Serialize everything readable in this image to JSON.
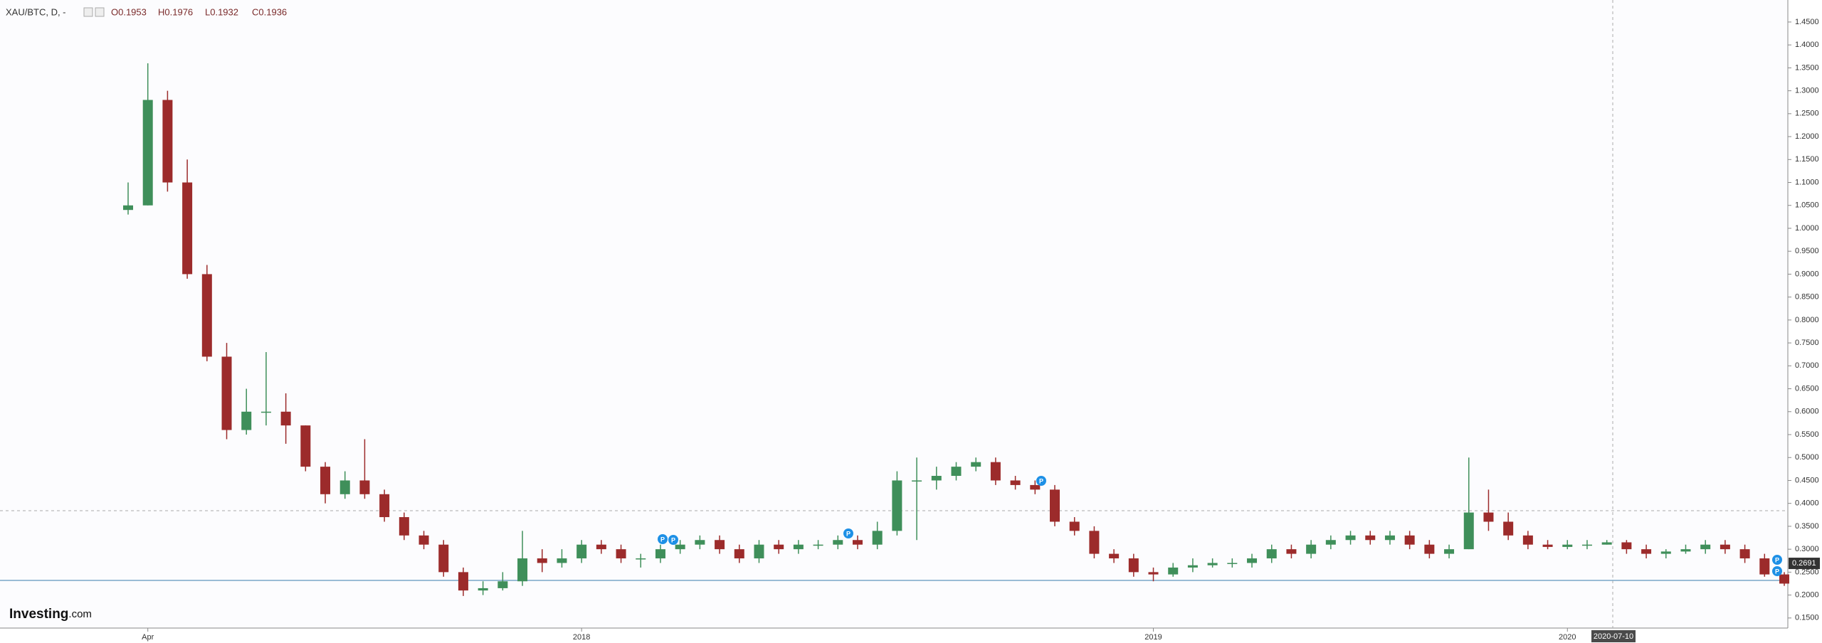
{
  "header": {
    "symbol": "XAU/BTC, D, -",
    "ohlc": [
      "O0.1953",
      "H0.1976",
      "L0.1932",
      "C0.1936"
    ],
    "crosshair_date": "2020-07-10",
    "event_marker_label": "P",
    "logo": "Investing",
    "logo_suffix": ".com"
  },
  "chart_data": {
    "type": "candlestick",
    "categories": [
      null,
      "Apr",
      null,
      null,
      null,
      null,
      null,
      null,
      null,
      null,
      null,
      null,
      null,
      null,
      null,
      null,
      null,
      null,
      null,
      null,
      null,
      null,
      null,
      "2018",
      null,
      null,
      null,
      null,
      null,
      null,
      null,
      null,
      null,
      null,
      null,
      null,
      null,
      null,
      null,
      null,
      null,
      null,
      null,
      null,
      null,
      null,
      null,
      null,
      null,
      null,
      null,
      null,
      "2019",
      null,
      null,
      null,
      null,
      null,
      null,
      null,
      null,
      null,
      null,
      null,
      null,
      null,
      null,
      null,
      null,
      null,
      null,
      null,
      null,
      "2020",
      null,
      null,
      null,
      null,
      null,
      null,
      null,
      null,
      null,
      null,
      null
    ],
    "open": [
      1.04,
      1.05,
      1.28,
      1.1,
      0.9,
      0.72,
      0.56,
      0.6,
      0.6,
      0.57,
      0.48,
      0.42,
      0.45,
      0.42,
      0.37,
      0.33,
      0.31,
      0.25,
      0.21,
      0.215,
      0.23,
      0.28,
      0.27,
      0.28,
      0.31,
      0.3,
      0.28,
      0.28,
      0.3,
      0.31,
      0.32,
      0.3,
      0.28,
      0.31,
      0.3,
      0.31,
      0.31,
      0.32,
      0.31,
      0.34,
      0.45,
      0.45,
      0.46,
      0.48,
      0.49,
      0.45,
      0.44,
      0.43,
      0.36,
      0.34,
      0.29,
      0.28,
      0.25,
      0.245,
      0.26,
      0.265,
      0.27,
      0.27,
      0.28,
      0.3,
      0.29,
      0.31,
      0.32,
      0.33,
      0.32,
      0.33,
      0.31,
      0.29,
      0.3,
      0.38,
      0.36,
      0.33,
      0.31,
      0.305,
      0.31,
      0.31,
      0.315,
      0.3,
      0.29,
      0.295,
      0.3,
      0.31,
      0.3,
      0.28,
      0.245
    ],
    "high": [
      1.1,
      1.36,
      1.3,
      1.15,
      0.92,
      0.75,
      0.65,
      0.73,
      0.64,
      0.57,
      0.49,
      0.47,
      0.54,
      0.43,
      0.38,
      0.34,
      0.32,
      0.26,
      0.23,
      0.25,
      0.34,
      0.3,
      0.3,
      0.32,
      0.32,
      0.31,
      0.29,
      0.31,
      0.32,
      0.33,
      0.33,
      0.31,
      0.32,
      0.32,
      0.32,
      0.32,
      0.33,
      0.33,
      0.36,
      0.47,
      0.5,
      0.48,
      0.49,
      0.5,
      0.5,
      0.46,
      0.45,
      0.44,
      0.37,
      0.35,
      0.3,
      0.29,
      0.26,
      0.27,
      0.28,
      0.28,
      0.28,
      0.29,
      0.31,
      0.31,
      0.32,
      0.33,
      0.34,
      0.34,
      0.34,
      0.34,
      0.32,
      0.31,
      0.5,
      0.43,
      0.38,
      0.34,
      0.32,
      0.32,
      0.32,
      0.32,
      0.32,
      0.31,
      0.3,
      0.31,
      0.32,
      0.32,
      0.31,
      0.29,
      0.25
    ],
    "low": [
      1.03,
      1.05,
      1.08,
      0.89,
      0.71,
      0.54,
      0.55,
      0.57,
      0.53,
      0.47,
      0.4,
      0.41,
      0.41,
      0.36,
      0.32,
      0.3,
      0.24,
      0.198,
      0.2,
      0.21,
      0.22,
      0.25,
      0.26,
      0.27,
      0.29,
      0.27,
      0.26,
      0.27,
      0.29,
      0.3,
      0.29,
      0.27,
      0.27,
      0.29,
      0.29,
      0.3,
      0.3,
      0.3,
      0.3,
      0.33,
      0.32,
      0.43,
      0.45,
      0.47,
      0.44,
      0.43,
      0.42,
      0.35,
      0.33,
      0.28,
      0.27,
      0.24,
      0.23,
      0.24,
      0.25,
      0.26,
      0.26,
      0.26,
      0.27,
      0.28,
      0.28,
      0.3,
      0.31,
      0.31,
      0.31,
      0.3,
      0.28,
      0.28,
      0.3,
      0.34,
      0.32,
      0.3,
      0.3,
      0.3,
      0.3,
      0.31,
      0.29,
      0.28,
      0.28,
      0.29,
      0.29,
      0.29,
      0.27,
      0.24,
      0.22
    ],
    "close": [
      1.05,
      1.28,
      1.1,
      0.9,
      0.72,
      0.56,
      0.6,
      0.6,
      0.57,
      0.48,
      0.42,
      0.45,
      0.42,
      0.37,
      0.33,
      0.31,
      0.25,
      0.21,
      0.215,
      0.23,
      0.28,
      0.27,
      0.28,
      0.31,
      0.3,
      0.28,
      0.28,
      0.3,
      0.31,
      0.32,
      0.3,
      0.28,
      0.31,
      0.3,
      0.31,
      0.31,
      0.32,
      0.31,
      0.34,
      0.45,
      0.45,
      0.46,
      0.48,
      0.49,
      0.45,
      0.44,
      0.43,
      0.36,
      0.34,
      0.29,
      0.28,
      0.25,
      0.245,
      0.26,
      0.265,
      0.27,
      0.27,
      0.28,
      0.3,
      0.29,
      0.31,
      0.32,
      0.33,
      0.32,
      0.33,
      0.31,
      0.29,
      0.3,
      0.38,
      0.36,
      0.33,
      0.31,
      0.305,
      0.31,
      0.31,
      0.315,
      0.3,
      0.29,
      0.295,
      0.3,
      0.31,
      0.3,
      0.28,
      0.245,
      0.225
    ],
    "up_color": "#3f8f5a",
    "down_color": "#9c2b2b",
    "last_price": 0.2691,
    "ylim": [
      0.128,
      1.498
    ],
    "yticks": [
      {
        "value": 0.15,
        "label": "0.1500"
      },
      {
        "value": 0.2,
        "label": "0.2000"
      },
      {
        "value": 0.25,
        "label": "0.2500"
      },
      {
        "value": 0.3,
        "label": "0.3000"
      },
      {
        "value": 0.35,
        "label": "0.3500"
      },
      {
        "value": 0.4,
        "label": "0.4000"
      },
      {
        "value": 0.45,
        "label": "0.4500"
      },
      {
        "value": 0.5,
        "label": "0.5000"
      },
      {
        "value": 0.55,
        "label": "0.5500"
      },
      {
        "value": 0.6,
        "label": "0.6000"
      },
      {
        "value": 0.65,
        "label": "0.6500"
      },
      {
        "value": 0.7,
        "label": "0.7000"
      },
      {
        "value": 0.75,
        "label": "0.7500"
      },
      {
        "value": 0.8,
        "label": "0.8000"
      },
      {
        "value": 0.85,
        "label": "0.8500"
      },
      {
        "value": 0.9,
        "label": "0.9000"
      },
      {
        "value": 0.95,
        "label": "0.9500"
      },
      {
        "value": 1.0,
        "label": "1.0000"
      },
      {
        "value": 1.05,
        "label": "1.0500"
      },
      {
        "value": 1.1,
        "label": "1.1000"
      },
      {
        "value": 1.15,
        "label": "1.1500"
      },
      {
        "value": 1.2,
        "label": "1.2000"
      },
      {
        "value": 1.25,
        "label": "1.2500"
      },
      {
        "value": 1.3,
        "label": "1.3000"
      },
      {
        "value": 1.35,
        "label": "1.3500"
      },
      {
        "value": 1.4,
        "label": "1.4000"
      },
      {
        "value": 1.45,
        "label": "1.4500"
      }
    ]
  }
}
